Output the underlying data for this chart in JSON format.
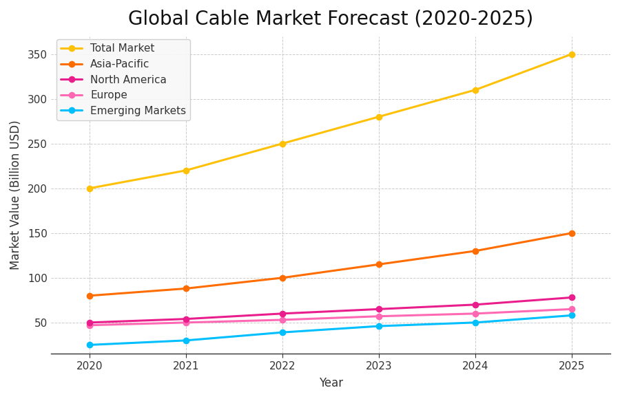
{
  "title": "Global Cable Market Forecast (2020-2025)",
  "xlabel": "Year",
  "ylabel": "Market Value (Billion USD)",
  "years": [
    2020,
    2021,
    2022,
    2023,
    2024,
    2025
  ],
  "series": [
    {
      "label": "Total Market",
      "values": [
        200,
        220,
        250,
        280,
        310,
        350
      ],
      "color": "#FFC107",
      "zorder": 5
    },
    {
      "label": "Asia-Pacific",
      "values": [
        80,
        88,
        100,
        115,
        130,
        150
      ],
      "color": "#FF6D00",
      "zorder": 4
    },
    {
      "label": "North America",
      "values": [
        50,
        54,
        60,
        65,
        70,
        78
      ],
      "color": "#E91E8C",
      "zorder": 3
    },
    {
      "label": "Europe",
      "values": [
        47,
        50,
        53,
        57,
        60,
        65
      ],
      "color": "#FF69B4",
      "zorder": 2
    },
    {
      "label": "Emerging Markets",
      "values": [
        25,
        30,
        39,
        46,
        50,
        58
      ],
      "color": "#00BFFF",
      "zorder": 1
    }
  ],
  "ylim": [
    15,
    370
  ],
  "yticks": [
    50,
    100,
    150,
    200,
    250,
    300,
    350
  ],
  "background_color": "#FFFFFF",
  "grid_color": "#CCCCCC",
  "title_fontsize": 20,
  "label_fontsize": 12,
  "tick_fontsize": 11,
  "legend_fontsize": 11,
  "linewidth": 2.2,
  "markersize": 6
}
